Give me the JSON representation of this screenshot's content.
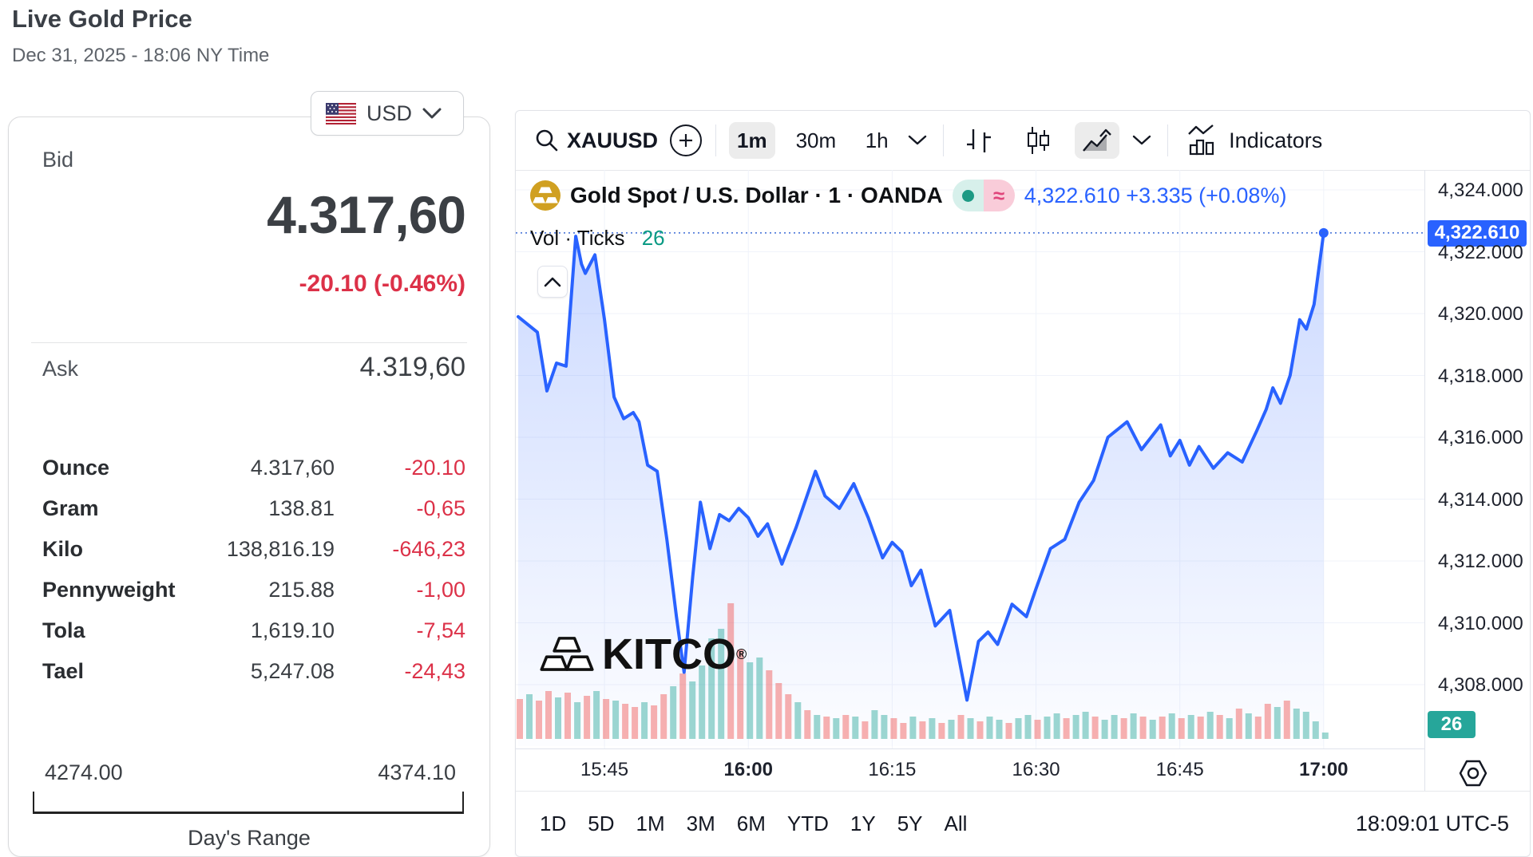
{
  "page": {
    "title": "Live Gold Price",
    "subtitle": "Dec 31, 2025 - 18:06 NY Time"
  },
  "currency_selector": {
    "flag": "us-flag",
    "label": "USD"
  },
  "quote_panel": {
    "bid_label": "Bid",
    "bid": "4.317,60",
    "change": "-20.10 (-0.46%)",
    "ask_label": "Ask",
    "ask": "4.319,60",
    "units": [
      {
        "label": "Ounce",
        "value": "4.317,60",
        "change": "-20.10"
      },
      {
        "label": "Gram",
        "value": "138.81",
        "change": "-0,65"
      },
      {
        "label": "Kilo",
        "value": "138,816.19",
        "change": "-646,23"
      },
      {
        "label": "Pennyweight",
        "value": "215.88",
        "change": "-1,00"
      },
      {
        "label": "Tola",
        "value": "1,619.10",
        "change": "-7,54"
      },
      {
        "label": "Tael",
        "value": "5,247.08",
        "change": "-24,43"
      }
    ],
    "range": {
      "low": "4274.00",
      "high": "4374.10",
      "label": "Day's Range"
    }
  },
  "chart": {
    "toolbar": {
      "symbol": "XAUUSD",
      "intervals": [
        "1m",
        "30m",
        "1h"
      ],
      "selected_interval": "1m",
      "indicators_label": "Indicators"
    },
    "symbol_line": {
      "title": "Gold Spot / U.S. Dollar · 1 · OANDA"
    },
    "quote": {
      "text": "4,322.610 +3.335 (+0.08%)",
      "price_label": "4,322.610"
    },
    "vol_row": {
      "label": "Vol · Ticks",
      "value": "26"
    },
    "axis_badge_volume": "26",
    "watermark": "KITCO",
    "footer": {
      "ranges": [
        "1D",
        "5D",
        "1M",
        "3M",
        "6M",
        "YTD",
        "1Y",
        "5Y",
        "All"
      ],
      "clock": "18:09:01 UTC-5"
    }
  },
  "colors": {
    "line_blue": "#2962ff",
    "quote_blue": "#2962ff",
    "red": "#dc3148",
    "teal_badge": "#26a69a",
    "vol_up": "rgba(38,166,154,0.45)",
    "vol_down": "rgba(239,83,80,0.45)",
    "grid": "#f0f3fa"
  },
  "chart_data": {
    "type": "line",
    "title": "XAUUSD 1-minute line chart",
    "x_axis": {
      "start_time": "15:36",
      "ticks": [
        {
          "t": 9,
          "label": "15:45",
          "bold": false
        },
        {
          "t": 24,
          "label": "16:00",
          "bold": true
        },
        {
          "t": 39,
          "label": "16:15",
          "bold": false
        },
        {
          "t": 54,
          "label": "16:30",
          "bold": false
        },
        {
          "t": 69,
          "label": "16:45",
          "bold": false
        },
        {
          "t": 84,
          "label": "17:00",
          "bold": true
        }
      ]
    },
    "y_axis": {
      "values": [
        4324,
        4322,
        4320,
        4318,
        4316,
        4314,
        4312,
        4310,
        4308
      ],
      "labels": [
        "4,324.000",
        "4,322.000",
        "4,320.000",
        "4,318.000",
        "4,316.000",
        "4,314.000",
        "4,312.000",
        "4,310.000",
        "4,308.000"
      ],
      "range": [
        4306.5,
        4324.6
      ]
    },
    "last_price": 4322.61,
    "last_change": "+3.335 (+0.08%)",
    "tick_volume": 26,
    "series_points": [
      [
        0,
        4319.9
      ],
      [
        2,
        4319.4
      ],
      [
        3,
        4317.5
      ],
      [
        4,
        4318.4
      ],
      [
        5,
        4318.3
      ],
      [
        6,
        4322.5
      ],
      [
        6.6,
        4321.6
      ],
      [
        7,
        4321.3
      ],
      [
        8,
        4321.9
      ],
      [
        9,
        4319.8
      ],
      [
        10,
        4317.3
      ],
      [
        11,
        4316.6
      ],
      [
        12,
        4316.8
      ],
      [
        12.6,
        4316.5
      ],
      [
        13.5,
        4315.1
      ],
      [
        14.5,
        4314.9
      ],
      [
        15.5,
        4312.7
      ],
      [
        16.5,
        4310.2
      ],
      [
        17.3,
        4308.4
      ],
      [
        18.2,
        4311.5
      ],
      [
        19,
        4313.9
      ],
      [
        20,
        4312.4
      ],
      [
        21,
        4313.5
      ],
      [
        22,
        4313.3
      ],
      [
        23,
        4313.7
      ],
      [
        24,
        4313.4
      ],
      [
        25,
        4312.8
      ],
      [
        26,
        4313.2
      ],
      [
        27.5,
        4311.9
      ],
      [
        29,
        4313.1
      ],
      [
        31,
        4314.9
      ],
      [
        32,
        4314.1
      ],
      [
        33.5,
        4313.7
      ],
      [
        35,
        4314.5
      ],
      [
        36.5,
        4313.4
      ],
      [
        38,
        4312.1
      ],
      [
        39,
        4312.6
      ],
      [
        40,
        4312.3
      ],
      [
        41,
        4311.2
      ],
      [
        42,
        4311.7
      ],
      [
        43.5,
        4309.9
      ],
      [
        45,
        4310.4
      ],
      [
        46.8,
        4307.5
      ],
      [
        48,
        4309.4
      ],
      [
        49,
        4309.7
      ],
      [
        50,
        4309.3
      ],
      [
        51.5,
        4310.6
      ],
      [
        53,
        4310.2
      ],
      [
        54,
        4311.1
      ],
      [
        55.5,
        4312.4
      ],
      [
        57,
        4312.7
      ],
      [
        58.5,
        4313.9
      ],
      [
        60,
        4314.6
      ],
      [
        61.5,
        4316.0
      ],
      [
        63.5,
        4316.5
      ],
      [
        65,
        4315.6
      ],
      [
        66,
        4316.0
      ],
      [
        67,
        4316.4
      ],
      [
        68,
        4315.4
      ],
      [
        69,
        4315.9
      ],
      [
        70,
        4315.1
      ],
      [
        71,
        4315.7
      ],
      [
        72.5,
        4315.0
      ],
      [
        74,
        4315.5
      ],
      [
        75.5,
        4315.2
      ],
      [
        77,
        4316.2
      ],
      [
        78,
        4316.9
      ],
      [
        78.7,
        4317.6
      ],
      [
        79.5,
        4317.1
      ],
      [
        80.5,
        4318.0
      ],
      [
        81.5,
        4319.8
      ],
      [
        82.2,
        4319.5
      ],
      [
        83,
        4320.3
      ],
      [
        84,
        4322.61
      ]
    ],
    "volume_heights": [
      50,
      56,
      48,
      60,
      52,
      58,
      46,
      54,
      60,
      50,
      48,
      44,
      40,
      46,
      42,
      56,
      66,
      82,
      72,
      92,
      126,
      138,
      170,
      112,
      96,
      102,
      86,
      70,
      56,
      46,
      36,
      30,
      28,
      26,
      30,
      28,
      22,
      36,
      30,
      26,
      20,
      28,
      22,
      26,
      20,
      24,
      30,
      26,
      22,
      28,
      24,
      20,
      26,
      30,
      24,
      28,
      32,
      26,
      30,
      34,
      28,
      24,
      30,
      26,
      32,
      28,
      24,
      28,
      32,
      26,
      30,
      28,
      34,
      30,
      26,
      38,
      32,
      28,
      44,
      40,
      48,
      38,
      34,
      22,
      8
    ],
    "volume_colors": "rgrrgrgrgrgrrgrrgrggggrrggrrrgrgrgrgrggrrgrgrgrgrggrggrggrggrggrgrgrgrgrgrgrgrrgrgggg"
  }
}
